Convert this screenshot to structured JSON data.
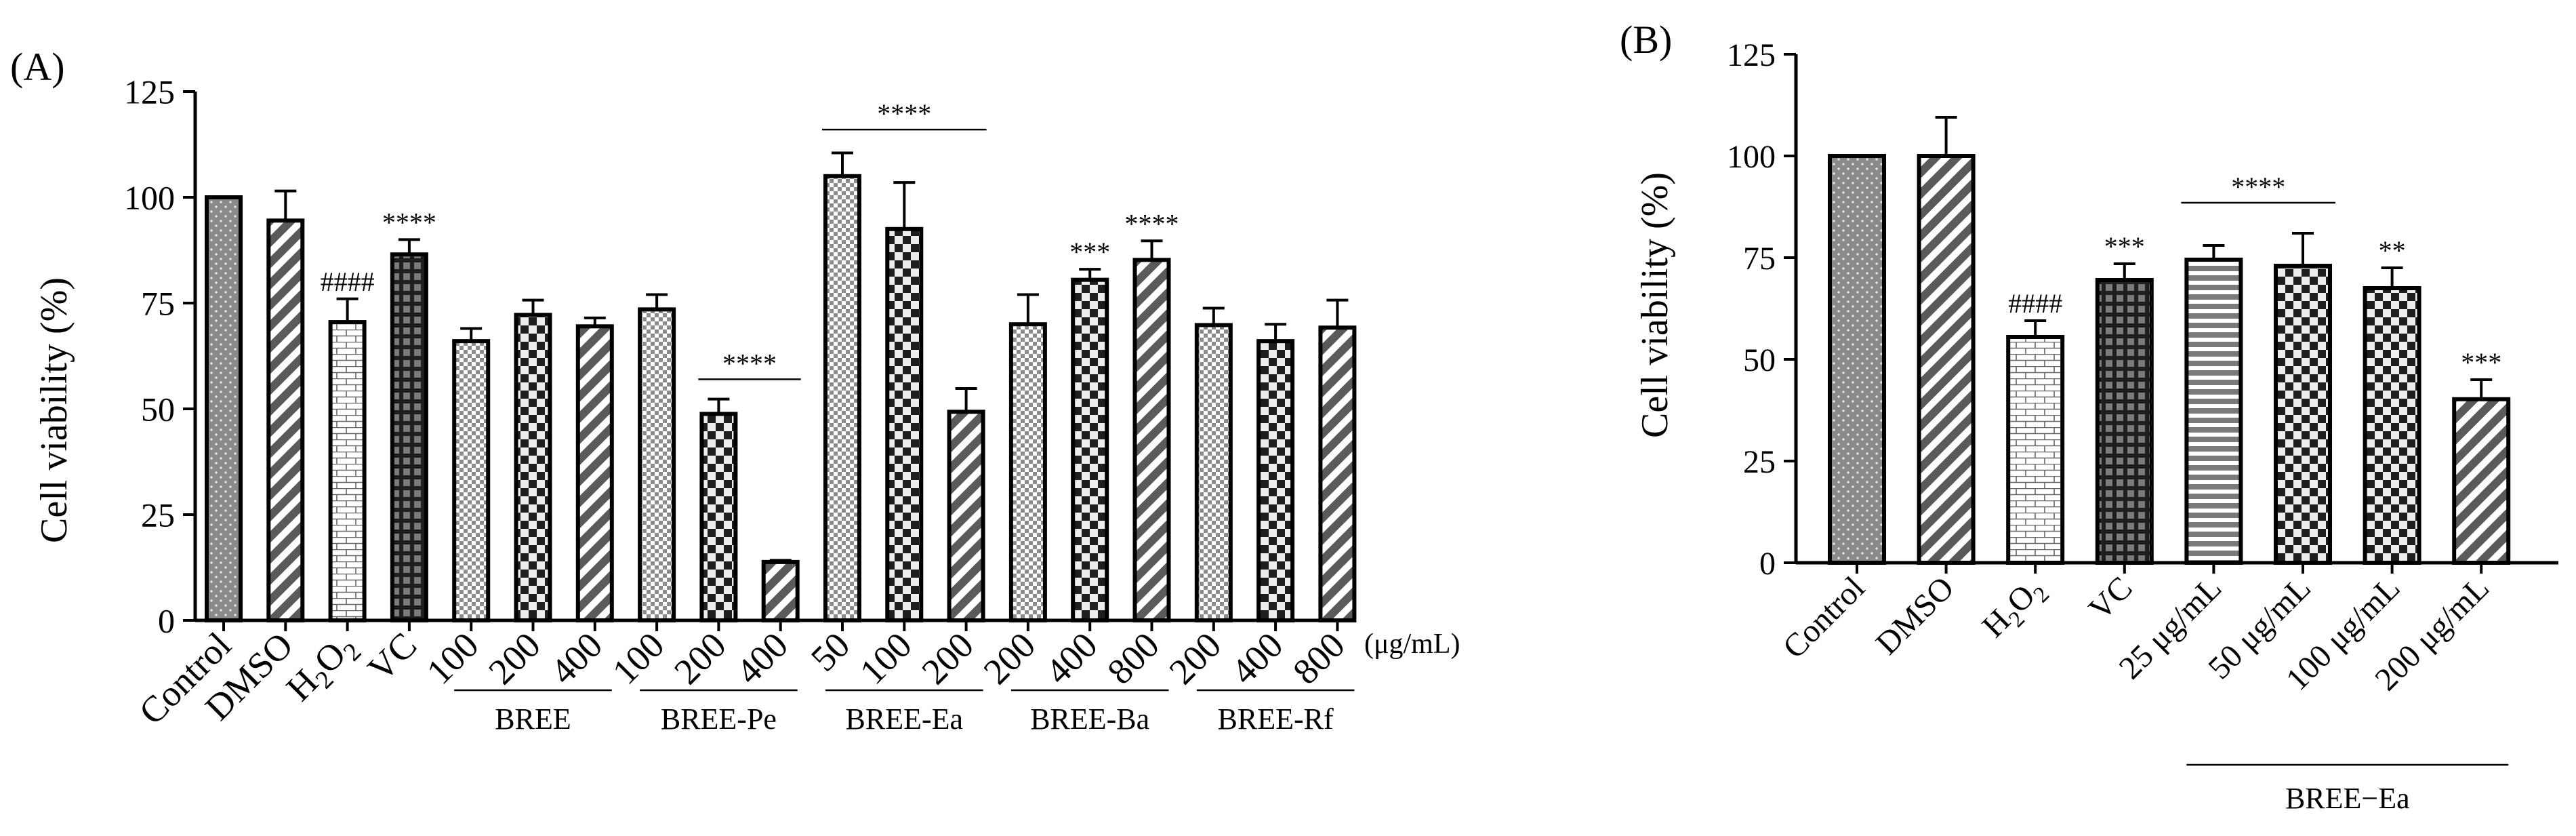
{
  "chart_data": [
    {
      "panel_label": "(A)",
      "type": "bar",
      "ylabel": "Cell viability (%)",
      "ylim": [
        0,
        125
      ],
      "yticks": [
        0,
        25,
        50,
        75,
        100,
        125
      ],
      "unit_label": "(μg/mL)",
      "categories": [
        "Control",
        "DMSO",
        "H2O2",
        "VC",
        "100",
        "200",
        "400",
        "100",
        "200",
        "400",
        "50",
        "100",
        "200",
        "200",
        "400",
        "800",
        "200",
        "400",
        "800"
      ],
      "values": [
        100,
        94.5,
        70.5,
        86.5,
        66,
        72.2,
        69.5,
        73.5,
        48.8,
        13.8,
        105,
        92.5,
        49.3,
        70,
        80.5,
        85.2,
        69.8,
        66,
        69.2
      ],
      "errors": [
        0,
        7,
        5.5,
        3.5,
        3,
        3.5,
        2,
        3.5,
        3.5,
        0.4,
        5.5,
        11,
        5.5,
        7,
        2.5,
        4.5,
        4,
        4,
        6.5
      ],
      "patterns": [
        "dots",
        "diag",
        "brick",
        "grid",
        "check-fine",
        "check",
        "diag",
        "check-fine",
        "check",
        "diag",
        "check-fine",
        "check",
        "diag",
        "check-fine",
        "check",
        "diag",
        "check-fine",
        "check",
        "diag"
      ],
      "annotations": [
        {
          "bar": 2,
          "text": "####"
        },
        {
          "bar": 3,
          "text": "****"
        },
        {
          "bar": 14,
          "text": "***"
        },
        {
          "bar": 15,
          "text": "****"
        }
      ],
      "brackets": [
        {
          "from": 8,
          "to": 9,
          "level": 57,
          "text": "****"
        },
        {
          "from": 10,
          "to": 12,
          "level": 116,
          "text": "****"
        }
      ],
      "groups": [
        {
          "from": 4,
          "to": 6,
          "label": "BREE"
        },
        {
          "from": 7,
          "to": 9,
          "label": "BREE-Pe"
        },
        {
          "from": 10,
          "to": 12,
          "label": "BREE-Ea"
        },
        {
          "from": 13,
          "to": 15,
          "label": "BREE-Ba"
        },
        {
          "from": 16,
          "to": 18,
          "label": "BREE-Rf"
        }
      ]
    },
    {
      "panel_label": "(B)",
      "type": "bar",
      "ylabel": "Cell viability (%)",
      "ylim": [
        0,
        125
      ],
      "yticks": [
        0,
        25,
        50,
        75,
        100,
        125
      ],
      "categories": [
        "Control",
        "DMSO",
        "H2O2",
        "VC",
        "25 μg/mL",
        "50 μg/mL",
        "100 μg/mL",
        "200 μg/mL"
      ],
      "values": [
        100,
        100,
        55.5,
        69.5,
        74.5,
        73,
        67.5,
        40.2
      ],
      "errors": [
        0,
        9.5,
        4,
        4,
        3.5,
        8,
        5,
        4.8
      ],
      "patterns": [
        "dots",
        "diag",
        "brick",
        "grid",
        "hstripes",
        "check",
        "check",
        "diag"
      ],
      "annotations": [
        {
          "bar": 2,
          "text": "####"
        },
        {
          "bar": 3,
          "text": "***"
        },
        {
          "bar": 6,
          "text": "**"
        },
        {
          "bar": 7,
          "text": "***"
        }
      ],
      "brackets": [
        {
          "from": 4,
          "to": 5,
          "level": 88.5,
          "text": "****"
        }
      ],
      "groups": [
        {
          "from": 4,
          "to": 7,
          "label": "BREE−Ea"
        }
      ]
    }
  ]
}
